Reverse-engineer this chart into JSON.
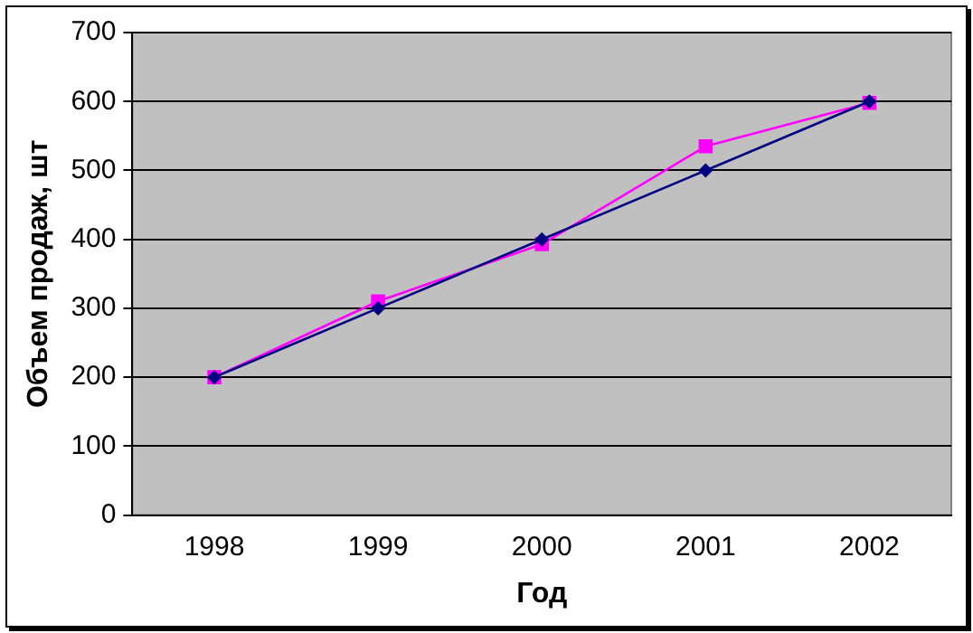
{
  "chart_data": {
    "type": "line",
    "xlabel": "Год",
    "ylabel": "Объем продаж, шт",
    "categories": [
      "1998",
      "1999",
      "2000",
      "2001",
      "2002"
    ],
    "series": [
      {
        "color": "#000080",
        "values": [
          200,
          300,
          400,
          500,
          600
        ],
        "marker": "diamond"
      },
      {
        "color": "#ff00ff",
        "values": [
          200,
          310,
          393,
          535,
          598
        ],
        "marker": "square"
      }
    ],
    "ylim": [
      0,
      700
    ],
    "yticks": [
      0,
      100,
      200,
      300,
      400,
      500,
      600,
      700
    ],
    "grid": "y",
    "legend": false,
    "line_style": "solid"
  }
}
